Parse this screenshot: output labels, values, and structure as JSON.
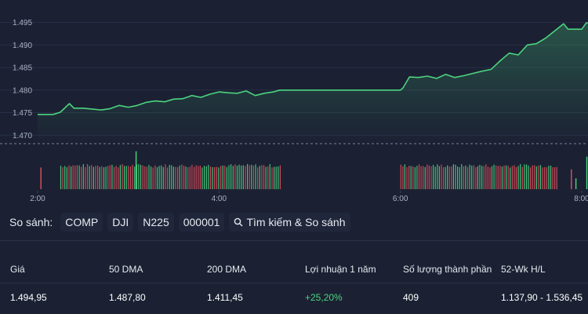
{
  "chart_data": {
    "type": "line",
    "y_ticks": [
      "1.495",
      "1.490",
      "1.485",
      "1.480",
      "1.475",
      "1.470"
    ],
    "y_tick_values": [
      1495,
      1490,
      1485,
      1480,
      1475,
      1470
    ],
    "ylim": [
      1469,
      1496.5
    ],
    "x_ticks": [
      "2:00",
      "4:00",
      "6:00",
      "8:00"
    ],
    "x_tick_hours": [
      2,
      4,
      6,
      8
    ],
    "reference_line": 1469,
    "grid": "horizontal",
    "line_color": "#4bd47e",
    "series": [
      {
        "values": [
          [
            2.0,
            1474.6
          ],
          [
            2.17,
            1474.6
          ],
          [
            2.25,
            1475.1
          ],
          [
            2.35,
            1477.0
          ],
          [
            2.4,
            1476.0
          ],
          [
            2.5,
            1476.0
          ],
          [
            2.6,
            1475.8
          ],
          [
            2.7,
            1475.6
          ],
          [
            2.8,
            1475.9
          ],
          [
            2.9,
            1476.6
          ],
          [
            3.0,
            1476.2
          ],
          [
            3.1,
            1476.6
          ],
          [
            3.2,
            1477.3
          ],
          [
            3.3,
            1477.6
          ],
          [
            3.4,
            1477.4
          ],
          [
            3.5,
            1478.0
          ],
          [
            3.6,
            1478.1
          ],
          [
            3.7,
            1478.8
          ],
          [
            3.8,
            1478.4
          ],
          [
            3.9,
            1479.1
          ],
          [
            4.0,
            1479.6
          ],
          [
            4.1,
            1479.4
          ],
          [
            4.2,
            1479.3
          ],
          [
            4.3,
            1479.8
          ],
          [
            4.4,
            1478.8
          ],
          [
            4.5,
            1479.3
          ],
          [
            4.6,
            1479.6
          ],
          [
            4.67,
            1480.0
          ],
          [
            6.0,
            1480.0
          ],
          [
            6.03,
            1480.5
          ],
          [
            6.1,
            1482.9
          ],
          [
            6.2,
            1482.8
          ],
          [
            6.3,
            1483.1
          ],
          [
            6.4,
            1482.6
          ],
          [
            6.5,
            1483.5
          ],
          [
            6.6,
            1482.8
          ],
          [
            6.7,
            1483.2
          ],
          [
            6.8,
            1483.7
          ],
          [
            6.9,
            1484.2
          ],
          [
            7.0,
            1484.6
          ],
          [
            7.1,
            1486.5
          ],
          [
            7.2,
            1488.2
          ],
          [
            7.3,
            1487.8
          ],
          [
            7.4,
            1490.0
          ],
          [
            7.5,
            1490.3
          ],
          [
            7.6,
            1491.5
          ],
          [
            7.7,
            1493.1
          ],
          [
            7.8,
            1494.7
          ],
          [
            7.85,
            1493.5
          ],
          [
            7.9,
            1493.5
          ],
          [
            8.0,
            1493.5
          ],
          [
            8.05,
            1494.9
          ],
          [
            8.3,
            1494.9
          ]
        ]
      }
    ],
    "volume": {
      "colors": {
        "up": "#4bd47e",
        "down": "#e04f5c"
      },
      "segments": [
        {
          "start": 2.25,
          "end": 4.67,
          "count": 108,
          "base": 0.6
        },
        {
          "start": 6.0,
          "end": 7.72,
          "count": 78,
          "base": 0.6
        }
      ],
      "spikes": [
        {
          "t": 2.03,
          "h": 0.6,
          "color": "down"
        },
        {
          "t": 3.08,
          "h": 1.05,
          "color": "up"
        },
        {
          "t": 7.88,
          "h": 0.55,
          "color": "down"
        },
        {
          "t": 7.93,
          "h": 0.3,
          "color": "up"
        },
        {
          "t": 8.05,
          "h": 0.9,
          "color": "up"
        },
        {
          "t": 8.15,
          "h": 0.35,
          "color": "up"
        }
      ]
    }
  },
  "compare": {
    "label": "So sánh:",
    "chips": [
      "COMP",
      "DJI",
      "N225",
      "000001"
    ],
    "search_label": "Tìm kiếm & So sánh"
  },
  "stats": {
    "headers": [
      "Giá",
      "50 DMA",
      "200 DMA",
      "Lợi nhuận 1 năm",
      "Số lượng thành phần",
      "52-Wk H/L"
    ],
    "values": [
      "1.494,95",
      "1.487,80",
      "1.411,45",
      "+25,20%",
      "409",
      "1.137,90 - 1.536,45"
    ],
    "positive_color": "#4bd47e"
  }
}
